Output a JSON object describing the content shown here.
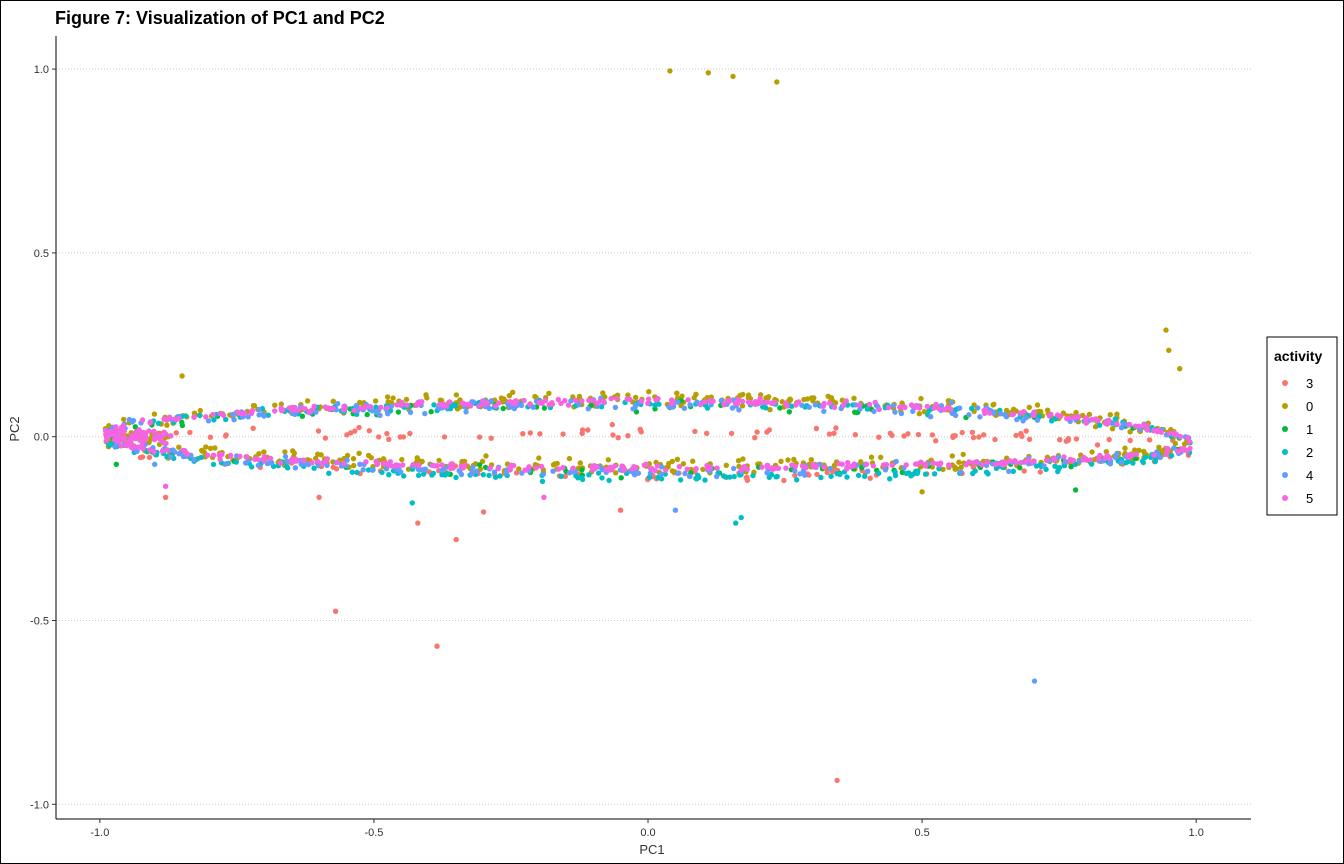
{
  "chart_data": {
    "type": "scatter",
    "title": "Figure 7: Visualization of PC1 and PC2",
    "xlabel": "PC1",
    "ylabel": "PC2",
    "xlim": [
      -1.08,
      1.1
    ],
    "ylim": [
      -1.04,
      1.09
    ],
    "x_ticks": [
      -1.0,
      -0.5,
      0.0,
      0.5,
      1.0
    ],
    "x_tick_labels": [
      "-1.0",
      "-0.5",
      "0.0",
      "0.5",
      "1.0"
    ],
    "y_ticks": [
      -1.0,
      -0.5,
      0.0,
      0.5,
      1.0
    ],
    "y_tick_labels": [
      "-1.0",
      "-0.5",
      "0.0",
      "0.5",
      "1.0"
    ],
    "grid": "horizontal-dotted",
    "legend": {
      "title": "activity",
      "position": "right"
    },
    "series": [
      {
        "name": "3",
        "color": "#F8766D",
        "outliers": [
          [
            -0.57,
            -0.475
          ],
          [
            -0.385,
            -0.57
          ],
          [
            0.345,
            -0.935
          ],
          [
            -0.35,
            -0.28
          ],
          [
            -0.42,
            -0.235
          ],
          [
            -0.88,
            -0.165
          ],
          [
            -0.6,
            -0.165
          ],
          [
            -0.05,
            -0.2
          ],
          [
            -0.3,
            -0.205
          ]
        ],
        "band": {
          "top_amp": 0.005,
          "bottom_amp": -0.11,
          "jitter": 0.025,
          "count": 170
        }
      },
      {
        "name": "0",
        "color": "#B79F00",
        "outliers": [
          [
            0.04,
            0.995
          ],
          [
            0.11,
            0.99
          ],
          [
            0.155,
            0.98
          ],
          [
            0.235,
            0.965
          ],
          [
            0.945,
            0.29
          ],
          [
            0.95,
            0.235
          ],
          [
            0.97,
            0.185
          ],
          [
            -0.85,
            0.165
          ],
          [
            0.5,
            -0.15
          ]
        ],
        "band": {
          "top_amp": 0.095,
          "bottom_amp": -0.085,
          "jitter": 0.03,
          "count": 560
        }
      },
      {
        "name": "1",
        "color": "#00BA38",
        "outliers": [
          [
            -0.97,
            -0.075
          ],
          [
            0.78,
            -0.145
          ]
        ],
        "band": {
          "top_amp": 0.075,
          "bottom_amp": -0.1,
          "jitter": 0.02,
          "count": 90
        }
      },
      {
        "name": "2",
        "color": "#00BFC4",
        "outliers": [
          [
            0.16,
            -0.235
          ],
          [
            -0.43,
            -0.18
          ],
          [
            0.17,
            -0.22
          ]
        ],
        "band": {
          "top_amp": 0.085,
          "bottom_amp": -0.115,
          "jitter": 0.02,
          "count": 300
        }
      },
      {
        "name": "4",
        "color": "#619CFF",
        "outliers": [
          [
            0.705,
            -0.665
          ],
          [
            -0.9,
            -0.075
          ],
          [
            0.05,
            -0.2
          ]
        ],
        "band": {
          "top_amp": 0.085,
          "bottom_amp": -0.1,
          "jitter": 0.025,
          "count": 320
        }
      },
      {
        "name": "5",
        "color": "#F564E3",
        "outliers": [
          [
            -0.88,
            -0.135
          ],
          [
            -0.19,
            -0.165
          ]
        ],
        "band": {
          "top_amp": 0.09,
          "bottom_amp": -0.09,
          "jitter": 0.012,
          "count": 460
        }
      }
    ]
  }
}
